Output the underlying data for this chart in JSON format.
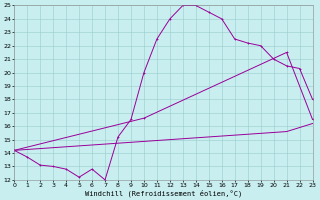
{
  "xlabel": "Windchill (Refroidissement éolien,°C)",
  "xlim": [
    0,
    23
  ],
  "ylim": [
    12,
    25
  ],
  "yticks": [
    12,
    13,
    14,
    15,
    16,
    17,
    18,
    19,
    20,
    21,
    22,
    23,
    24,
    25
  ],
  "xticks": [
    0,
    1,
    2,
    3,
    4,
    5,
    6,
    7,
    8,
    9,
    10,
    11,
    12,
    13,
    14,
    15,
    16,
    17,
    18,
    19,
    20,
    21,
    22,
    23
  ],
  "bg_color": "#c8eef0",
  "line_color": "#990099",
  "grid_color": "#99cccc",
  "curve1_x": [
    0,
    1,
    2,
    3,
    4,
    5,
    6,
    7,
    8,
    9,
    10,
    11,
    12,
    13,
    14,
    15,
    16,
    17,
    18,
    19,
    20,
    21,
    22,
    23
  ],
  "curve1_y": [
    14.2,
    13.7,
    13.1,
    13.0,
    12.8,
    12.2,
    12.8,
    12.0,
    15.2,
    16.5,
    20.0,
    22.5,
    24.0,
    25.0,
    25.0,
    24.5,
    24.0,
    22.5,
    22.2,
    22.0,
    21.0,
    20.5,
    20.3,
    18.0
  ],
  "curve2_x": [
    0,
    10,
    21,
    23
  ],
  "curve2_y": [
    14.2,
    16.6,
    21.5,
    16.5
  ],
  "curve3_x": [
    0,
    21,
    23
  ],
  "curve3_y": [
    14.2,
    15.6,
    16.2
  ]
}
